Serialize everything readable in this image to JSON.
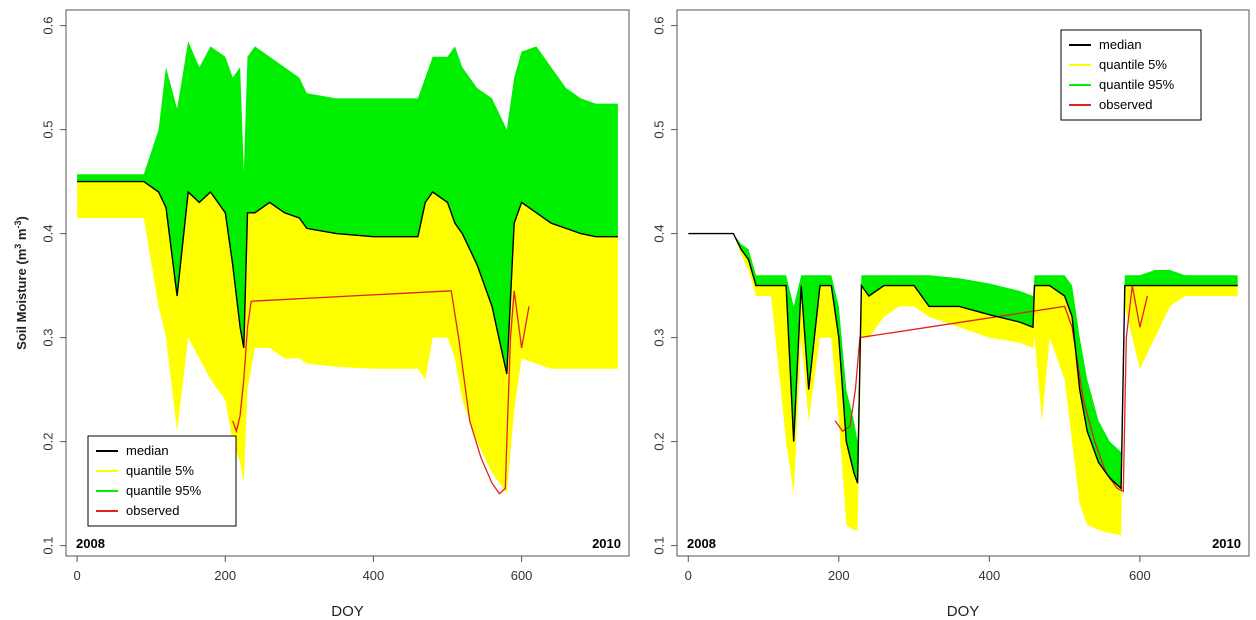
{
  "chart_data": [
    {
      "type": "area",
      "ylabel_main": "Soil Moisture (m",
      "ylabel_sup1": "3",
      "ylabel_mid": " m",
      "ylabel_sup2": "-3",
      "ylabel_end": ")",
      "xlabel": "DOY",
      "xlim": [
        -15,
        745
      ],
      "ylim": [
        0.09,
        0.615
      ],
      "xticks": [
        0,
        200,
        400,
        600
      ],
      "yticks": [
        0.1,
        0.2,
        0.3,
        0.4,
        0.5,
        0.6
      ],
      "legend_position": "bottom-left",
      "year_start": "2008",
      "year_end": "2010",
      "series": [
        {
          "name": "median",
          "color": "#000000"
        },
        {
          "name": "quantile 5%",
          "color": "#ffff00"
        },
        {
          "name": "quantile 95%",
          "color": "#00ee00"
        },
        {
          "name": "observed",
          "color": "#e52020"
        }
      ],
      "x": [
        0,
        90,
        110,
        120,
        135,
        150,
        165,
        180,
        200,
        210,
        220,
        225,
        230,
        240,
        260,
        280,
        300,
        310,
        350,
        400,
        460,
        470,
        480,
        500,
        510,
        520,
        540,
        560,
        580,
        590,
        600,
        620,
        640,
        660,
        680,
        700,
        730
      ],
      "q95": [
        0.457,
        0.457,
        0.5,
        0.56,
        0.52,
        0.585,
        0.56,
        0.58,
        0.57,
        0.55,
        0.56,
        0.46,
        0.57,
        0.58,
        0.57,
        0.56,
        0.55,
        0.535,
        0.53,
        0.53,
        0.53,
        0.55,
        0.57,
        0.57,
        0.58,
        0.56,
        0.54,
        0.53,
        0.5,
        0.55,
        0.575,
        0.58,
        0.56,
        0.54,
        0.53,
        0.525,
        0.525
      ],
      "median": [
        0.45,
        0.45,
        0.44,
        0.425,
        0.34,
        0.44,
        0.43,
        0.44,
        0.42,
        0.37,
        0.31,
        0.29,
        0.42,
        0.42,
        0.43,
        0.42,
        0.415,
        0.405,
        0.4,
        0.397,
        0.397,
        0.43,
        0.44,
        0.43,
        0.41,
        0.4,
        0.37,
        0.33,
        0.265,
        0.41,
        0.43,
        0.42,
        0.41,
        0.405,
        0.4,
        0.397,
        0.397
      ],
      "q05": [
        0.415,
        0.415,
        0.33,
        0.3,
        0.21,
        0.3,
        0.28,
        0.26,
        0.24,
        0.2,
        0.18,
        0.16,
        0.25,
        0.29,
        0.29,
        0.28,
        0.28,
        0.275,
        0.272,
        0.27,
        0.27,
        0.26,
        0.3,
        0.3,
        0.28,
        0.24,
        0.2,
        0.17,
        0.15,
        0.23,
        0.28,
        0.275,
        0.27,
        0.27,
        0.27,
        0.27,
        0.27
      ],
      "observed_x": [
        210,
        215,
        220,
        225,
        230,
        235,
        505,
        515,
        530,
        545,
        560,
        570,
        578,
        580,
        585,
        590,
        600,
        610
      ],
      "observed_y": [
        0.22,
        0.21,
        0.225,
        0.26,
        0.31,
        0.335,
        0.345,
        0.3,
        0.22,
        0.185,
        0.16,
        0.15,
        0.155,
        0.2,
        0.3,
        0.345,
        0.29,
        0.33
      ]
    },
    {
      "type": "area",
      "xlabel": "DOY",
      "xlim": [
        -15,
        745
      ],
      "ylim": [
        0.09,
        0.615
      ],
      "xticks": [
        0,
        200,
        400,
        600
      ],
      "yticks": [
        0.1,
        0.2,
        0.3,
        0.4,
        0.5,
        0.6
      ],
      "legend_position": "top-right",
      "year_start": "2008",
      "year_end": "2010",
      "series": [
        {
          "name": "median",
          "color": "#000000"
        },
        {
          "name": "quantile 5%",
          "color": "#ffff00"
        },
        {
          "name": "quantile 95%",
          "color": "#00ee00"
        },
        {
          "name": "observed",
          "color": "#e52020"
        }
      ],
      "x": [
        0,
        50,
        60,
        70,
        80,
        90,
        100,
        110,
        130,
        140,
        150,
        160,
        175,
        190,
        200,
        210,
        220,
        225,
        230,
        240,
        260,
        280,
        300,
        320,
        360,
        400,
        440,
        458,
        460,
        470,
        480,
        500,
        510,
        520,
        530,
        545,
        560,
        575,
        580,
        590,
        600,
        620,
        640,
        660,
        680,
        700,
        730
      ],
      "q95": [
        0.4,
        0.4,
        0.4,
        0.39,
        0.385,
        0.36,
        0.36,
        0.36,
        0.36,
        0.33,
        0.36,
        0.36,
        0.36,
        0.36,
        0.33,
        0.25,
        0.22,
        0.2,
        0.36,
        0.36,
        0.36,
        0.36,
        0.36,
        0.36,
        0.357,
        0.352,
        0.345,
        0.34,
        0.36,
        0.36,
        0.36,
        0.36,
        0.35,
        0.3,
        0.26,
        0.22,
        0.2,
        0.19,
        0.36,
        0.36,
        0.36,
        0.365,
        0.365,
        0.36,
        0.36,
        0.36,
        0.36
      ],
      "median": [
        0.4,
        0.4,
        0.4,
        0.385,
        0.375,
        0.35,
        0.35,
        0.35,
        0.35,
        0.2,
        0.35,
        0.25,
        0.35,
        0.35,
        0.3,
        0.2,
        0.17,
        0.16,
        0.35,
        0.34,
        0.35,
        0.35,
        0.35,
        0.33,
        0.33,
        0.322,
        0.315,
        0.31,
        0.35,
        0.35,
        0.35,
        0.34,
        0.32,
        0.25,
        0.21,
        0.18,
        0.165,
        0.155,
        0.35,
        0.35,
        0.35,
        0.35,
        0.35,
        0.35,
        0.35,
        0.35,
        0.35
      ],
      "q05": [
        0.4,
        0.4,
        0.4,
        0.38,
        0.365,
        0.34,
        0.34,
        0.34,
        0.2,
        0.15,
        0.3,
        0.22,
        0.3,
        0.3,
        0.22,
        0.12,
        0.115,
        0.115,
        0.3,
        0.3,
        0.32,
        0.33,
        0.33,
        0.32,
        0.31,
        0.3,
        0.295,
        0.29,
        0.3,
        0.22,
        0.3,
        0.26,
        0.2,
        0.14,
        0.12,
        0.115,
        0.112,
        0.11,
        0.33,
        0.3,
        0.27,
        0.3,
        0.33,
        0.34,
        0.34,
        0.34,
        0.34
      ],
      "observed_x": [
        195,
        205,
        215,
        222,
        228,
        500,
        510,
        525,
        540,
        555,
        570,
        578,
        582,
        590,
        600,
        610
      ],
      "observed_y": [
        0.22,
        0.21,
        0.215,
        0.25,
        0.3,
        0.33,
        0.31,
        0.24,
        0.2,
        0.17,
        0.155,
        0.152,
        0.3,
        0.35,
        0.31,
        0.34
      ]
    }
  ]
}
